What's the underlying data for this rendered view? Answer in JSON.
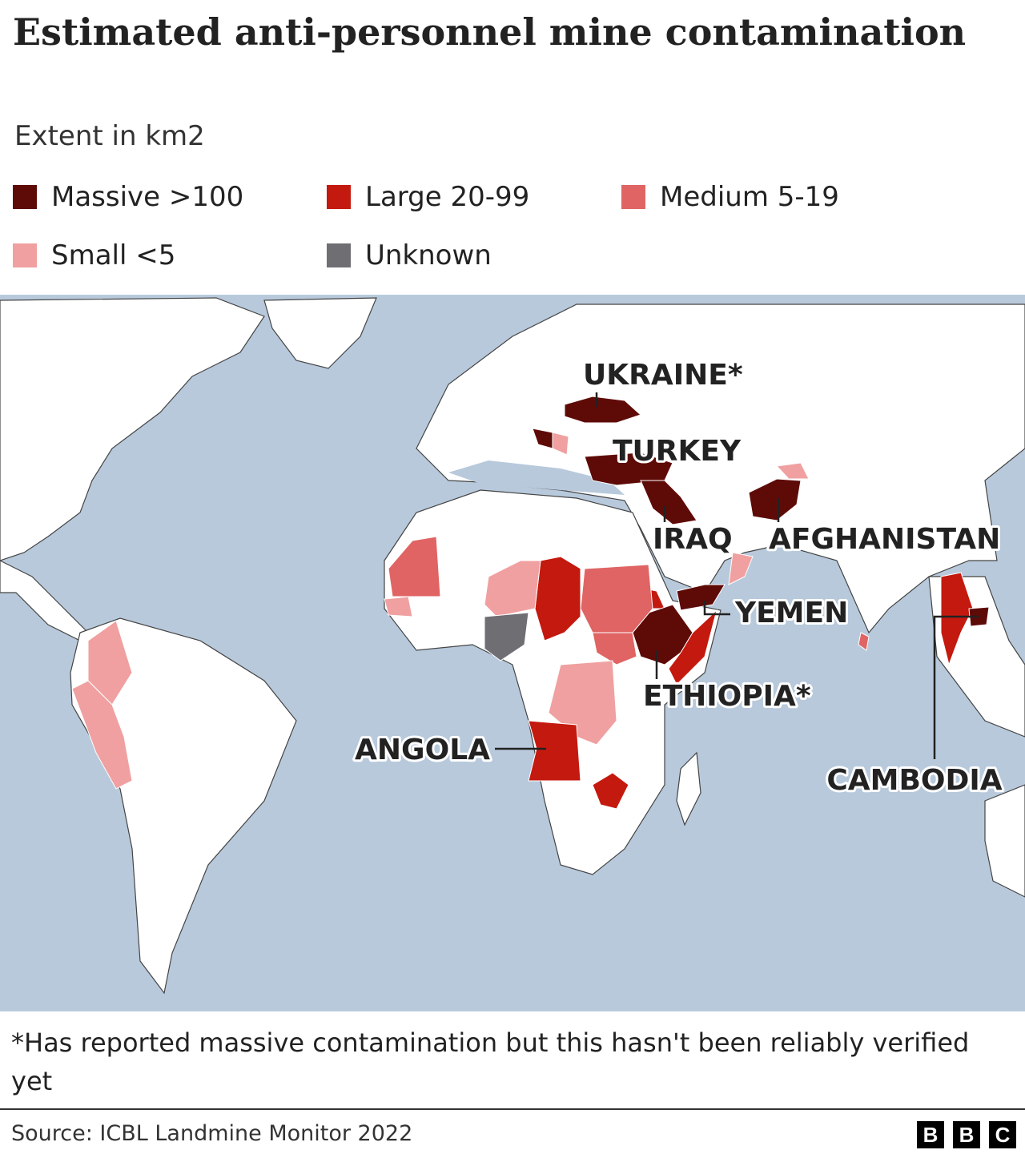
{
  "header": {
    "title": "Estimated anti-personnel mine contamination",
    "subtitle": "Extent in km2"
  },
  "legend": [
    {
      "label": "Massive >100",
      "color": "#5e0b08"
    },
    {
      "label": "Large 20-99",
      "color": "#c4190f"
    },
    {
      "label": "Medium 5-19",
      "color": "#e06464"
    },
    {
      "label": "Small <5",
      "color": "#f0a0a0"
    },
    {
      "label": "Unknown",
      "color": "#6e6e73"
    }
  ],
  "map": {
    "labels": [
      "UKRAINE*",
      "TURKEY",
      "IRAQ",
      "AFGHANISTAN",
      "YEMEN",
      "ETHIOPIA*",
      "ANGOLA",
      "CAMBODIA"
    ]
  },
  "footnote": "*Has reported massive contamination but this hasn't been reliably verified yet",
  "source": "Source: ICBL Landmine Monitor 2022",
  "logo": [
    "B",
    "B",
    "C"
  ]
}
